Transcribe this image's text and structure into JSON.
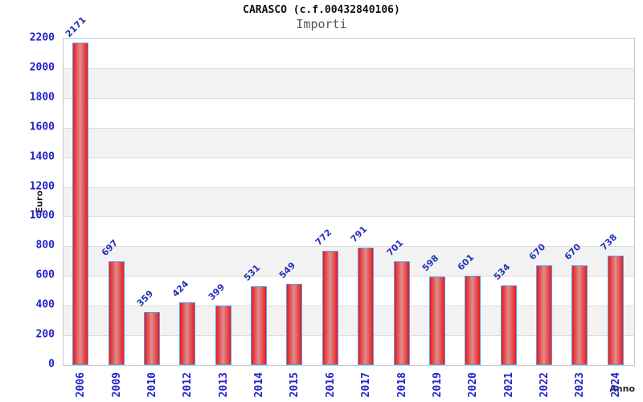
{
  "header": {
    "title": "CARASCO (c.f.00432840106)",
    "subtitle": "Importi"
  },
  "chart_data": {
    "type": "bar",
    "title": "CARASCO (c.f.00432840106)",
    "subtitle": "Importi",
    "xlabel": "Anno",
    "ylabel": "Euro",
    "categories": [
      "2006",
      "2009",
      "2010",
      "2012",
      "2013",
      "2014",
      "2015",
      "2016",
      "2017",
      "2018",
      "2019",
      "2020",
      "2021",
      "2022",
      "2023",
      "2024"
    ],
    "values": [
      2171,
      697,
      359,
      424,
      399,
      531,
      549,
      772,
      791,
      701,
      598,
      601,
      534,
      670,
      670,
      738
    ],
    "ylim": [
      0,
      2200
    ],
    "yticks": [
      0,
      200,
      400,
      600,
      800,
      1000,
      1200,
      1400,
      1600,
      1800,
      2000,
      2200
    ],
    "grid": "horizontal alternating bands every 200 with gridlines",
    "legend": "none"
  },
  "colors": {
    "tick_label": "#2222cc",
    "value_label": "#2233bb",
    "bar_edge": "#e81b1e",
    "bar_center": "#df8d8d",
    "bar_border": "#55a0e8",
    "grid_line": "#dcdcdc",
    "band_gray": "#f2f2f2",
    "band_white": "#ffffff",
    "plot_border": "#c8c8c8"
  }
}
